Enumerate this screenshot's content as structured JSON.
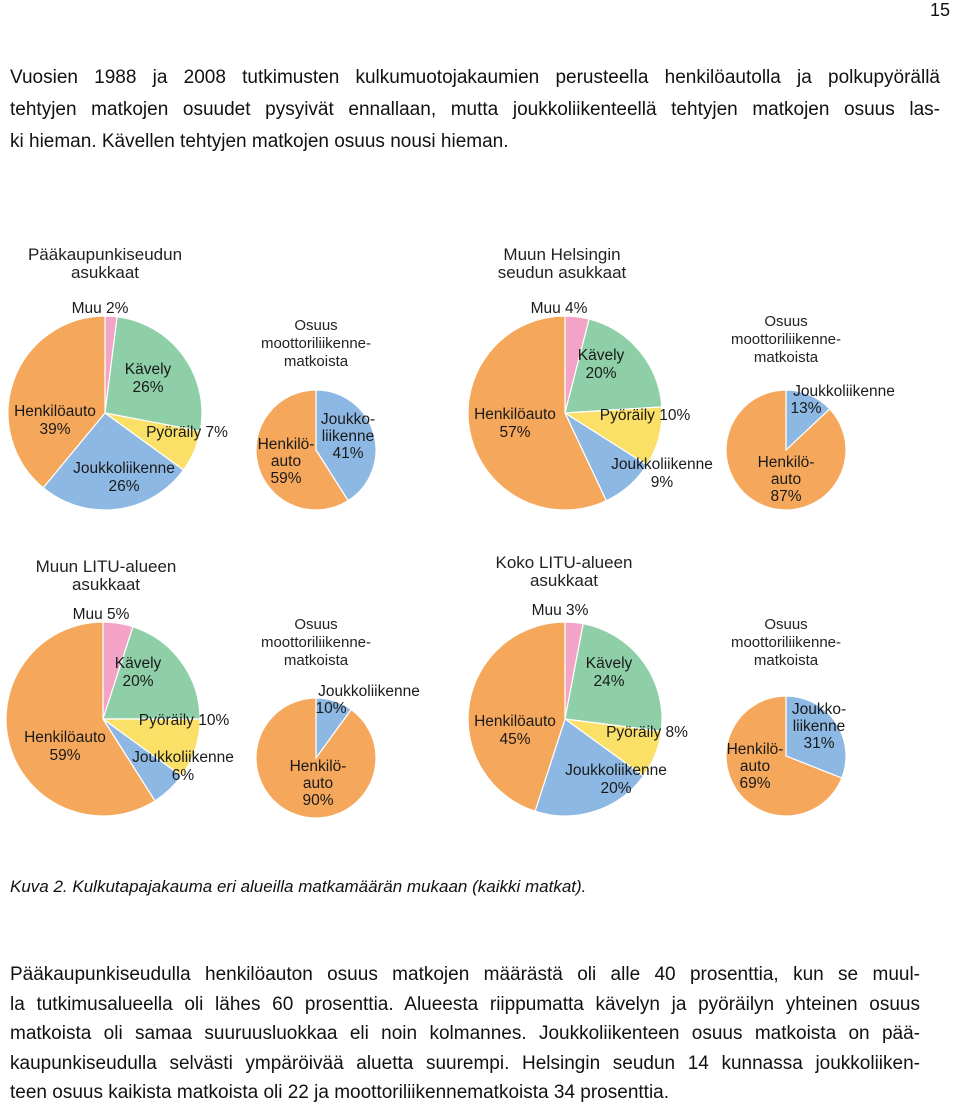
{
  "page_number": "15",
  "intro_lines": [
    "Vuosien 1988 ja 2008 tutkimusten kulkumuotojakaumien perusteella henkilöautolla ja polkupyörällä",
    "tehtyjen matkojen osuudet pysyivät ennallaan, mutta joukkoliikenteellä tehtyjen matkojen osuus las-",
    "ki hieman. Kävellen tehtyjen matkojen osuus nousi hieman."
  ],
  "colors": {
    "auto": "#F5A85B",
    "joukkoliikenne": "#8DB8E3",
    "pyoraily": "#FAE066",
    "kavely": "#8ECFA8",
    "muu": "#F2A3C6"
  },
  "chart_data": [
    {
      "type": "pie",
      "title": "Pääkaupunkiseudun asukkaat",
      "title_lines": [
        "Pääkaupunkiseudun",
        "asukkaat"
      ],
      "slices": [
        {
          "key": "muu",
          "label": "Muu",
          "value": 2,
          "value_text": "2%"
        },
        {
          "key": "kavely",
          "label": "Kävely",
          "value": 26,
          "value_text": "26%"
        },
        {
          "key": "pyoraily",
          "label": "Pyöräily",
          "value": 7,
          "value_text": "7%"
        },
        {
          "key": "joukkoliikenne",
          "label": "Joukkoliikenne",
          "value": 26,
          "value_text": "26%"
        },
        {
          "key": "auto",
          "label": "Henkilöauto",
          "value": 39,
          "value_text": "39%"
        }
      ]
    },
    {
      "type": "pie",
      "title": "Osuus moottoriliikennematkoista",
      "title_lines": [
        "Osuus",
        "moottoriliikenne-",
        "matkoista"
      ],
      "slices": [
        {
          "key": "joukkoliikenne",
          "label": "Joukko-liikenne",
          "value": 41,
          "value_text": "41%"
        },
        {
          "key": "auto",
          "label": "Henkilö-auto",
          "value": 59,
          "value_text": "59%"
        }
      ]
    },
    {
      "type": "pie",
      "title": "Muun Helsingin seudun asukkaat",
      "title_lines": [
        "Muun Helsingin",
        "seudun asukkaat"
      ],
      "slices": [
        {
          "key": "muu",
          "label": "Muu",
          "value": 4,
          "value_text": "4%"
        },
        {
          "key": "kavely",
          "label": "Kävely",
          "value": 20,
          "value_text": "20%"
        },
        {
          "key": "pyoraily",
          "label": "Pyöräily",
          "value": 10,
          "value_text": "10%"
        },
        {
          "key": "joukkoliikenne",
          "label": "Joukkoliikenne",
          "value": 9,
          "value_text": "9%"
        },
        {
          "key": "auto",
          "label": "Henkilöauto",
          "value": 57,
          "value_text": "57%"
        }
      ]
    },
    {
      "type": "pie",
      "title": "Osuus moottoriliikennematkoista",
      "title_lines": [
        "Osuus",
        "moottoriliikenne-",
        "matkoista"
      ],
      "slices": [
        {
          "key": "joukkoliikenne",
          "label": "Joukkoliikenne",
          "value": 13,
          "value_text": "13%"
        },
        {
          "key": "auto",
          "label": "Henkilö-auto",
          "value": 87,
          "value_text": "87%"
        }
      ]
    },
    {
      "type": "pie",
      "title": "Muun LITU-alueen asukkaat",
      "title_lines": [
        "Muun LITU-alueen",
        "asukkaat"
      ],
      "slices": [
        {
          "key": "muu",
          "label": "Muu",
          "value": 5,
          "value_text": "5%"
        },
        {
          "key": "kavely",
          "label": "Kävely",
          "value": 20,
          "value_text": "20%"
        },
        {
          "key": "pyoraily",
          "label": "Pyöräily",
          "value": 10,
          "value_text": "10%"
        },
        {
          "key": "joukkoliikenne",
          "label": "Joukkoliikenne",
          "value": 6,
          "value_text": "6%"
        },
        {
          "key": "auto",
          "label": "Henkilöauto",
          "value": 59,
          "value_text": "59%"
        }
      ]
    },
    {
      "type": "pie",
      "title": "Osuus moottoriliikennematkoista",
      "title_lines": [
        "Osuus",
        "moottoriliikenne-",
        "matkoista"
      ],
      "slices": [
        {
          "key": "joukkoliikenne",
          "label": "Joukkoliikenne",
          "value": 10,
          "value_text": "10%"
        },
        {
          "key": "auto",
          "label": "Henkilö-auto",
          "value": 90,
          "value_text": "90%"
        }
      ]
    },
    {
      "type": "pie",
      "title": "Koko LITU-alueen asukkaat",
      "title_lines": [
        "Koko LITU-alueen",
        "asukkaat"
      ],
      "slices": [
        {
          "key": "muu",
          "label": "Muu",
          "value": 3,
          "value_text": "3%"
        },
        {
          "key": "kavely",
          "label": "Kävely",
          "value": 24,
          "value_text": "24%"
        },
        {
          "key": "pyoraily",
          "label": "Pyöräily",
          "value": 8,
          "value_text": "8%"
        },
        {
          "key": "joukkoliikenne",
          "label": "Joukkoliikenne",
          "value": 20,
          "value_text": "20%"
        },
        {
          "key": "auto",
          "label": "Henkilöauto",
          "value": 45,
          "value_text": "45%"
        }
      ]
    },
    {
      "type": "pie",
      "title": "Osuus moottoriliikennematkoista",
      "title_lines": [
        "Osuus",
        "moottoriliikenne-",
        "matkoista"
      ],
      "slices": [
        {
          "key": "joukkoliikenne",
          "label": "Joukko-liikenne",
          "value": 31,
          "value_text": "31%"
        },
        {
          "key": "auto",
          "label": "Henkilö-auto",
          "value": 69,
          "value_text": "69%"
        }
      ]
    }
  ],
  "caption": "Kuva 2. Kulkutapajakauma eri alueilla matkamäärän mukaan (kaikki matkat).",
  "body_lines": [
    "Pääkaupunkiseudulla henkilöauton osuus matkojen määrästä oli alle 40 prosenttia, kun se muul-",
    "la tutkimusalueella oli lähes 60 prosenttia. Alueesta riippumatta kävelyn ja pyöräilyn yhteinen osuus",
    "matkoista oli samaa suuruusluokkaa eli noin kolmannes. Joukkoliikenteen osuus matkoista on pää-",
    "kaupunkiseudulla selvästi ympäröivää aluetta suurempi. Helsingin seudun 14 kunnassa joukkoliiken-",
    "teen osuus kaikista matkoista oli 22 ja moottoriliikennematkoista 34 prosenttia."
  ]
}
